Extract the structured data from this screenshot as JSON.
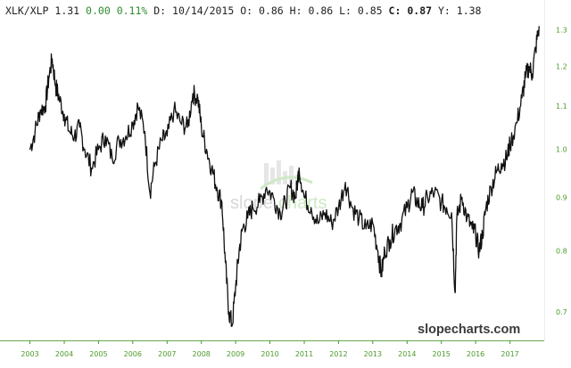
{
  "header": {
    "symbol": "XLK/XLP",
    "last": "1.31",
    "change": "0.00",
    "change_pct": "0.11%",
    "date_label": "D:",
    "date": "10/14/2015",
    "open_label": "O:",
    "open": "0.86",
    "high_label": "H:",
    "high": "0.86",
    "low_label": "L:",
    "low": "0.85",
    "close_label": "C:",
    "close": "0.87",
    "y_label": "Y:",
    "y": "1.38"
  },
  "watermark": "slopecharts.com",
  "colors": {
    "line": "#111111",
    "tick": "#4a9a2a",
    "axis": "#4a9a2a",
    "change": "#2e8b2e"
  },
  "chart_data": {
    "type": "line",
    "title": "",
    "xlabel": "",
    "ylabel": "",
    "scale": "log",
    "ylim": [
      0.66,
      1.33
    ],
    "xlim": [
      2002.7,
      2018.0
    ],
    "x_ticks": [
      "2003",
      "2004",
      "2005",
      "2006",
      "2007",
      "2008",
      "2009",
      "2010",
      "2011",
      "2012",
      "2013",
      "2014",
      "2015",
      "2016",
      "2017"
    ],
    "y_ticks": [
      "0.7",
      "0.8",
      "0.9",
      "1.0",
      "1.1",
      "1.2",
      "1.3"
    ],
    "grid": false,
    "series": [
      {
        "points": [
          [
            2003.0,
            1.0
          ],
          [
            2003.15,
            1.04
          ],
          [
            2003.3,
            1.09
          ],
          [
            2003.45,
            1.1
          ],
          [
            2003.55,
            1.17
          ],
          [
            2003.65,
            1.22
          ],
          [
            2003.75,
            1.15
          ],
          [
            2003.85,
            1.12
          ],
          [
            2004.0,
            1.08
          ],
          [
            2004.15,
            1.04
          ],
          [
            2004.3,
            1.03
          ],
          [
            2004.45,
            1.05
          ],
          [
            2004.6,
            1.0
          ],
          [
            2004.8,
            0.96
          ],
          [
            2005.0,
            1.0
          ],
          [
            2005.2,
            1.03
          ],
          [
            2005.4,
            0.98
          ],
          [
            2005.6,
            1.02
          ],
          [
            2005.8,
            1.03
          ],
          [
            2006.0,
            1.06
          ],
          [
            2006.15,
            1.1
          ],
          [
            2006.35,
            1.04
          ],
          [
            2006.5,
            0.91
          ],
          [
            2006.65,
            0.97
          ],
          [
            2006.85,
            1.02
          ],
          [
            2007.0,
            1.03
          ],
          [
            2007.2,
            1.09
          ],
          [
            2007.4,
            1.06
          ],
          [
            2007.6,
            1.05
          ],
          [
            2007.75,
            1.13
          ],
          [
            2007.9,
            1.12
          ],
          [
            2008.0,
            1.05
          ],
          [
            2008.15,
            1.0
          ],
          [
            2008.3,
            0.96
          ],
          [
            2008.45,
            0.92
          ],
          [
            2008.6,
            0.89
          ],
          [
            2008.7,
            0.78
          ],
          [
            2008.8,
            0.7
          ],
          [
            2008.9,
            0.68
          ],
          [
            2009.0,
            0.74
          ],
          [
            2009.1,
            0.8
          ],
          [
            2009.2,
            0.84
          ],
          [
            2009.35,
            0.86
          ],
          [
            2009.5,
            0.88
          ],
          [
            2009.7,
            0.89
          ],
          [
            2009.9,
            0.92
          ],
          [
            2010.1,
            0.9
          ],
          [
            2010.3,
            0.87
          ],
          [
            2010.45,
            0.89
          ],
          [
            2010.6,
            0.92
          ],
          [
            2010.75,
            0.9
          ],
          [
            2010.85,
            0.96
          ],
          [
            2011.0,
            0.9
          ],
          [
            2011.2,
            0.88
          ],
          [
            2011.4,
            0.85
          ],
          [
            2011.6,
            0.87
          ],
          [
            2011.8,
            0.85
          ],
          [
            2012.0,
            0.88
          ],
          [
            2012.2,
            0.93
          ],
          [
            2012.4,
            0.88
          ],
          [
            2012.6,
            0.86
          ],
          [
            2012.8,
            0.84
          ],
          [
            2013.0,
            0.85
          ],
          [
            2013.15,
            0.8
          ],
          [
            2013.25,
            0.76
          ],
          [
            2013.35,
            0.8
          ],
          [
            2013.5,
            0.82
          ],
          [
            2013.65,
            0.84
          ],
          [
            2013.8,
            0.85
          ],
          [
            2014.0,
            0.88
          ],
          [
            2014.15,
            0.91
          ],
          [
            2014.3,
            0.89
          ],
          [
            2014.45,
            0.88
          ],
          [
            2014.6,
            0.9
          ],
          [
            2014.8,
            0.91
          ],
          [
            2015.0,
            0.89
          ],
          [
            2015.15,
            0.88
          ],
          [
            2015.3,
            0.87
          ],
          [
            2015.4,
            0.73
          ],
          [
            2015.45,
            0.86
          ],
          [
            2015.6,
            0.9
          ],
          [
            2015.75,
            0.86
          ],
          [
            2015.9,
            0.84
          ],
          [
            2016.0,
            0.83
          ],
          [
            2016.1,
            0.8
          ],
          [
            2016.2,
            0.83
          ],
          [
            2016.3,
            0.88
          ],
          [
            2016.45,
            0.92
          ],
          [
            2016.6,
            0.95
          ],
          [
            2016.75,
            0.97
          ],
          [
            2016.9,
            0.98
          ],
          [
            2017.0,
            1.01
          ],
          [
            2017.2,
            1.06
          ],
          [
            2017.35,
            1.12
          ],
          [
            2017.45,
            1.17
          ],
          [
            2017.55,
            1.2
          ],
          [
            2017.65,
            1.18
          ],
          [
            2017.75,
            1.25
          ],
          [
            2017.85,
            1.31
          ]
        ]
      }
    ]
  }
}
